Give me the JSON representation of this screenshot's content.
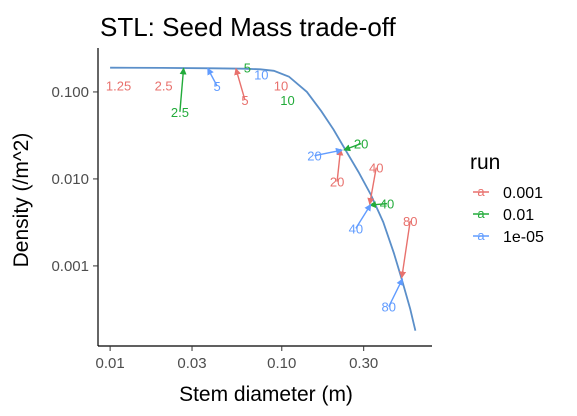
{
  "chart_data": {
    "type": "line",
    "title": "STL: Seed Mass trade-off",
    "xlabel": "Stem diameter (m)",
    "ylabel": "Density (/m^2)",
    "x_scale": "log10",
    "y_scale": "log10",
    "xlim": [
      0.0085,
      0.75
    ],
    "ylim": [
      0.00012,
      0.32
    ],
    "x_ticks": [
      {
        "value": 0.01,
        "label": "0.01"
      },
      {
        "value": 0.03,
        "label": "0.03"
      },
      {
        "value": 0.1,
        "label": "0.10"
      },
      {
        "value": 0.3,
        "label": "0.30"
      }
    ],
    "y_ticks": [
      {
        "value": 0.001,
        "label": "0.001"
      },
      {
        "value": 0.01,
        "label": "0.010"
      },
      {
        "value": 0.1,
        "label": "0.100"
      }
    ],
    "grid": false,
    "legend_position": "right",
    "line_color": "#5b8fc9",
    "curve": {
      "x": [
        0.01,
        0.02,
        0.04,
        0.06,
        0.075,
        0.09,
        0.11,
        0.14,
        0.17,
        0.2,
        0.24,
        0.28,
        0.33,
        0.39,
        0.45,
        0.5,
        0.56,
        0.6
      ],
      "y": [
        0.19,
        0.189,
        0.187,
        0.185,
        0.182,
        0.175,
        0.15,
        0.1,
        0.06,
        0.037,
        0.02,
        0.012,
        0.0066,
        0.0032,
        0.0014,
        0.0007,
        0.00032,
        0.00018
      ]
    },
    "legend": {
      "title": "run",
      "entries": [
        {
          "name": "0.001",
          "color": "#e8716d"
        },
        {
          "name": "0.01",
          "color": "#22ab3a"
        },
        {
          "name": "1e-05",
          "color": "#619cff"
        }
      ]
    },
    "annotations": [
      {
        "series": "0.001",
        "label": "1.25",
        "x": 0.0112,
        "y": 0.118,
        "tx": 0.0112,
        "ty": 0.118,
        "arrow": false
      },
      {
        "series": "0.001",
        "label": "2.5",
        "x": 0.0205,
        "y": 0.118,
        "tx": 0.0205,
        "ty": 0.118,
        "arrow": false
      },
      {
        "series": "0.001",
        "label": "5",
        "x": 0.054,
        "y": 0.186,
        "tx": 0.061,
        "ty": 0.081,
        "arrow": true
      },
      {
        "series": "0.001",
        "label": "10",
        "x": 0.09,
        "y": 0.174,
        "tx": 0.099,
        "ty": 0.118,
        "arrow": false
      },
      {
        "series": "0.001",
        "label": "20",
        "x": 0.22,
        "y": 0.022,
        "tx": 0.21,
        "ty": 0.0093,
        "arrow": true
      },
      {
        "series": "0.001",
        "label": "40",
        "x": 0.325,
        "y": 0.0051,
        "tx": 0.355,
        "ty": 0.0135,
        "arrow": true
      },
      {
        "series": "0.001",
        "label": "80",
        "x": 0.5,
        "y": 0.00073,
        "tx": 0.56,
        "ty": 0.0033,
        "arrow": true
      },
      {
        "series": "0.01",
        "label": "2.5",
        "x": 0.0268,
        "y": 0.188,
        "tx": 0.0255,
        "ty": 0.059,
        "arrow": true
      },
      {
        "series": "0.01",
        "label": "5",
        "x": 0.056,
        "y": 0.186,
        "tx": 0.063,
        "ty": 0.19,
        "arrow": false
      },
      {
        "series": "0.01",
        "label": "10",
        "x": 0.1,
        "y": 0.155,
        "tx": 0.108,
        "ty": 0.081,
        "arrow": false
      },
      {
        "series": "0.01",
        "label": "20",
        "x": 0.23,
        "y": 0.0215,
        "tx": 0.29,
        "ty": 0.0255,
        "arrow": true
      },
      {
        "series": "0.01",
        "label": "40",
        "x": 0.325,
        "y": 0.005,
        "tx": 0.41,
        "ty": 0.0052,
        "arrow": true
      },
      {
        "series": "1e-05",
        "label": "5",
        "x": 0.037,
        "y": 0.187,
        "tx": 0.042,
        "ty": 0.117,
        "arrow": true
      },
      {
        "series": "1e-05",
        "label": "10",
        "x": 0.073,
        "y": 0.181,
        "tx": 0.076,
        "ty": 0.159,
        "arrow": false
      },
      {
        "series": "1e-05",
        "label": "20",
        "x": 0.225,
        "y": 0.0215,
        "tx": 0.155,
        "ty": 0.0185,
        "arrow": true
      },
      {
        "series": "1e-05",
        "label": "40",
        "x": 0.33,
        "y": 0.0051,
        "tx": 0.27,
        "ty": 0.0027,
        "arrow": true
      },
      {
        "series": "1e-05",
        "label": "80",
        "x": 0.505,
        "y": 0.00071,
        "tx": 0.42,
        "ty": 0.00034,
        "arrow": true
      }
    ]
  }
}
